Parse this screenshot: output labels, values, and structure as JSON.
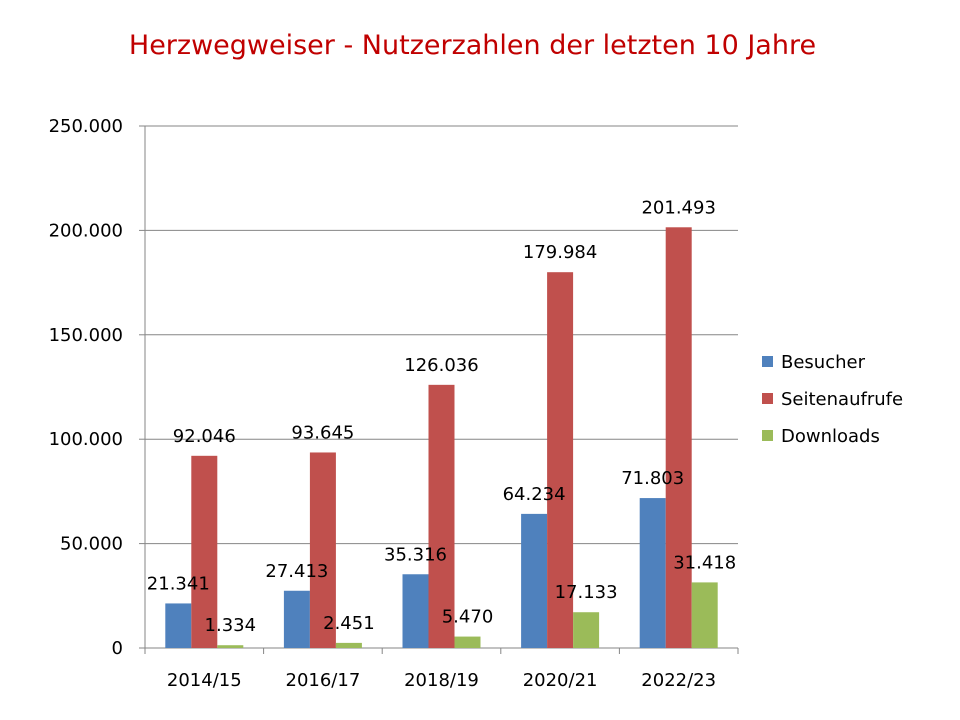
{
  "chart_data": {
    "type": "bar",
    "title": "Herzwegweiser - Nutzerzahlen der letzten 10 Jahre",
    "xlabel": "",
    "ylabel": "",
    "ylim": [
      0,
      250000
    ],
    "yticks": [
      0,
      50000,
      100000,
      150000,
      200000,
      250000
    ],
    "ytick_labels": [
      "0",
      "50.000",
      "100.000",
      "150.000",
      "200.000",
      "250.000"
    ],
    "grid": true,
    "legend_position": "right",
    "categories": [
      "2014/15",
      "2016/17",
      "2018/19",
      "2020/21",
      "2022/23"
    ],
    "series": [
      {
        "name": "Besucher",
        "color": "#4f81bd",
        "values": [
          21341,
          27413,
          35316,
          64234,
          71803
        ],
        "labels": [
          "21.341",
          "27.413",
          "35.316",
          "64.234",
          "71.803"
        ]
      },
      {
        "name": "Seitenaufrufe",
        "color": "#c0504d",
        "values": [
          92046,
          93645,
          126036,
          179984,
          201493
        ],
        "labels": [
          "92.046",
          "93.645",
          "126.036",
          "179.984",
          "201.493"
        ]
      },
      {
        "name": "Downloads",
        "color": "#9bbb59",
        "values": [
          1334,
          2451,
          5470,
          17133,
          31418
        ],
        "labels": [
          "1.334",
          "2.451",
          "5.470",
          "17.133",
          "31.418"
        ]
      }
    ]
  }
}
